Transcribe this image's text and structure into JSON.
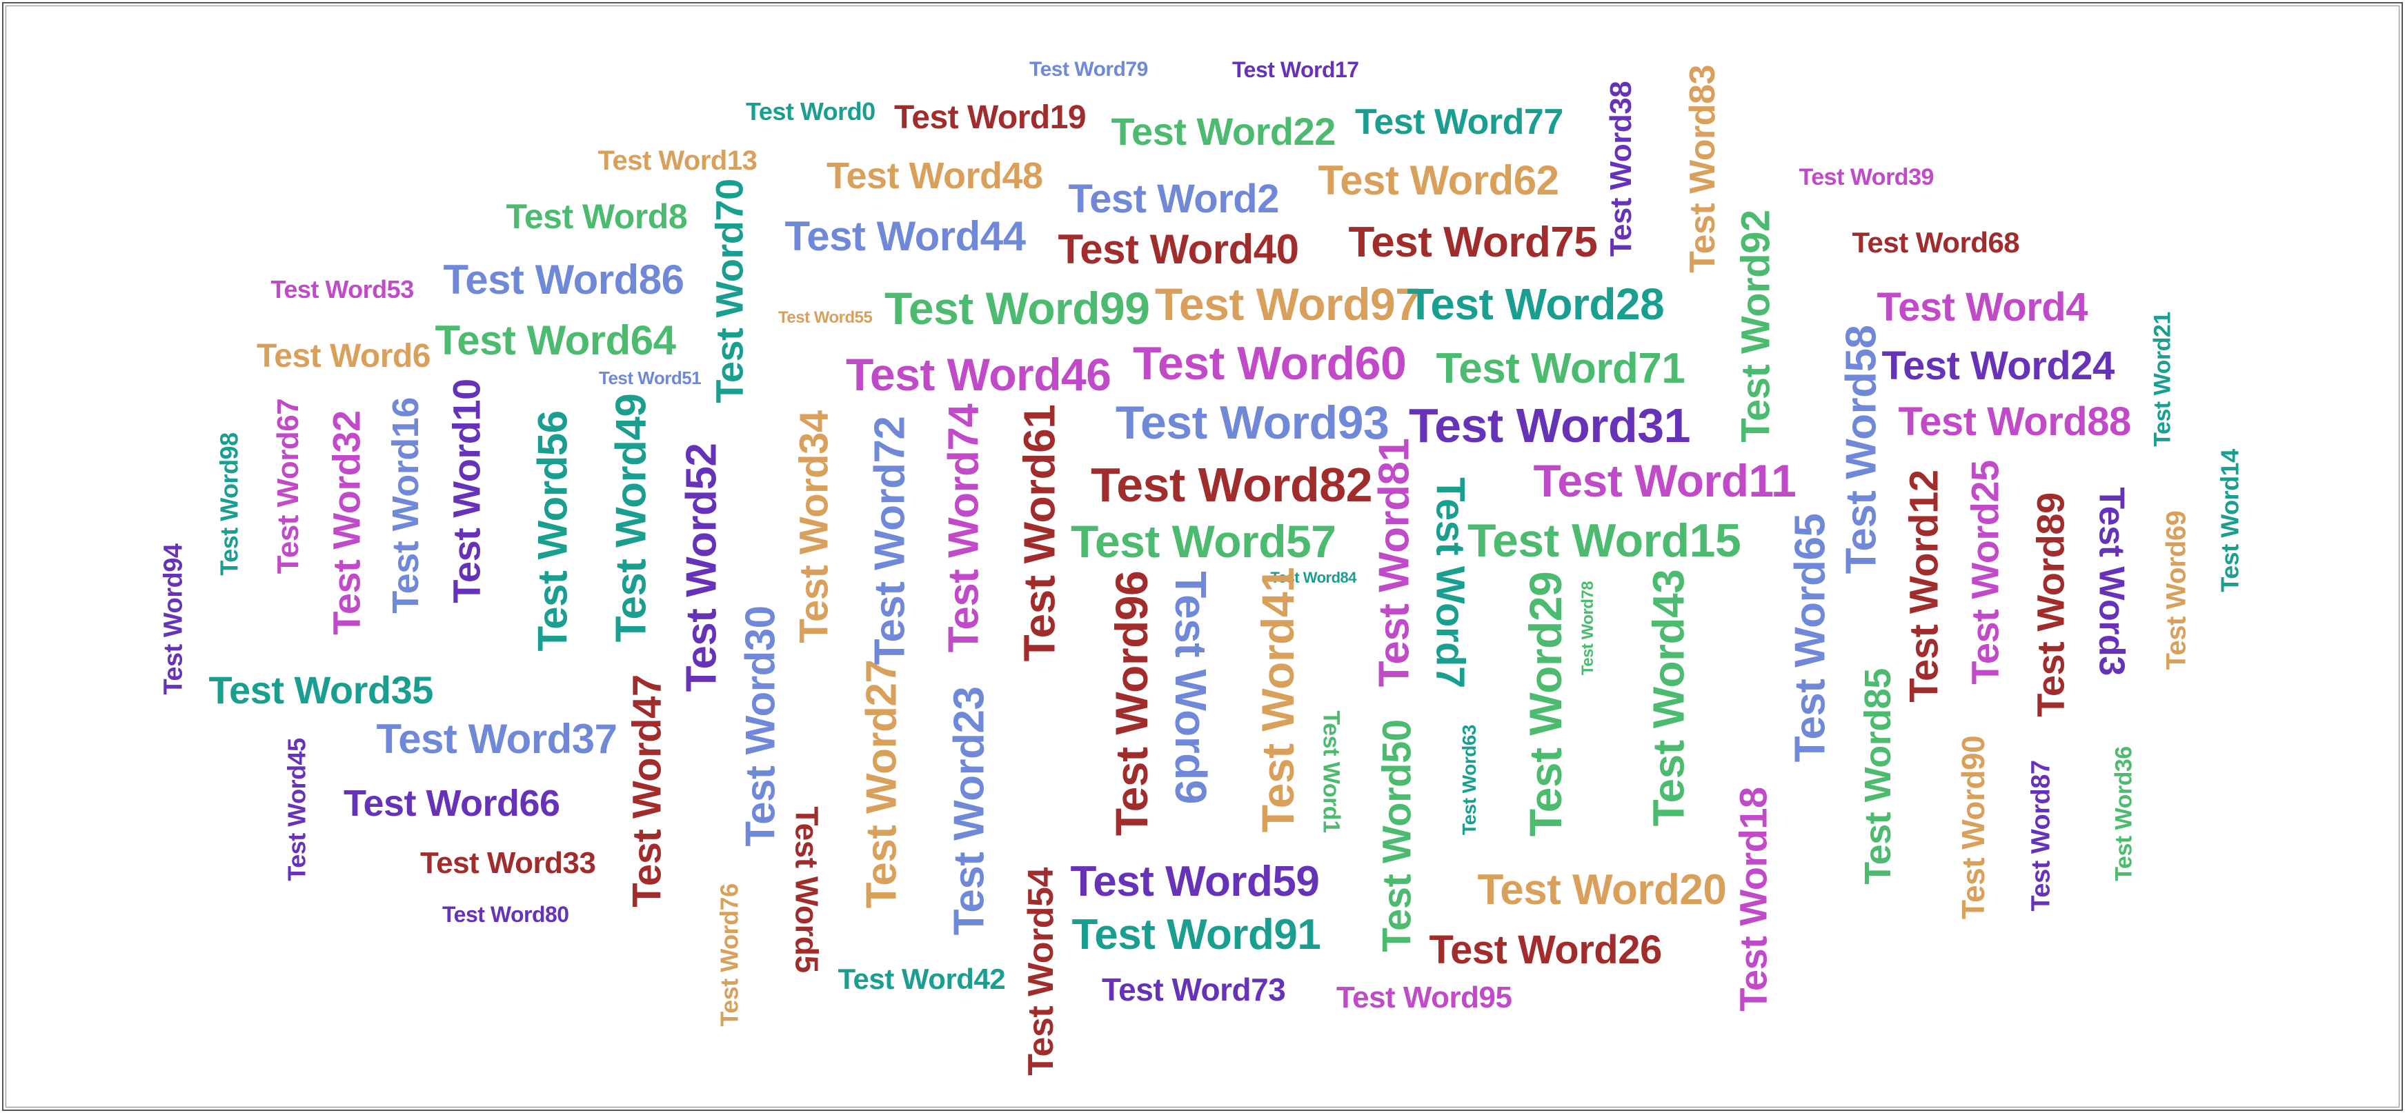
{
  "palette": {
    "teal": "#1a9e8f",
    "red": "#a02c2c",
    "green": "#4cbb6f",
    "blue": "#6f88d8",
    "purple": "#6633b8",
    "orange": "#d9a05b",
    "magenta": "#c04ac8"
  },
  "words": [
    {
      "text": "Test Word79",
      "color": "blue"
    },
    {
      "text": "Test Word17",
      "color": "purple"
    },
    {
      "text": "Test Word0",
      "color": "teal"
    },
    {
      "text": "Test Word19",
      "color": "red"
    },
    {
      "text": "Test Word22",
      "color": "green"
    },
    {
      "text": "Test Word77",
      "color": "teal"
    },
    {
      "text": "Test Word38",
      "color": "purple"
    },
    {
      "text": "Test Word83",
      "color": "orange"
    },
    {
      "text": "Test Word13",
      "color": "orange"
    },
    {
      "text": "Test Word48",
      "color": "orange"
    },
    {
      "text": "Test Word62",
      "color": "orange"
    },
    {
      "text": "Test Word2",
      "color": "blue"
    },
    {
      "text": "Test Word39",
      "color": "magenta"
    },
    {
      "text": "Test Word8",
      "color": "green"
    },
    {
      "text": "Test Word70",
      "color": "teal"
    },
    {
      "text": "Test Word44",
      "color": "blue"
    },
    {
      "text": "Test Word40",
      "color": "red"
    },
    {
      "text": "Test Word75",
      "color": "red"
    },
    {
      "text": "Test Word92",
      "color": "green"
    },
    {
      "text": "Test Word68",
      "color": "red"
    },
    {
      "text": "Test Word53",
      "color": "magenta"
    },
    {
      "text": "Test Word86",
      "color": "blue"
    },
    {
      "text": "Test Word99",
      "color": "green"
    },
    {
      "text": "Test Word97",
      "color": "orange"
    },
    {
      "text": "Test Word28",
      "color": "teal"
    },
    {
      "text": "Test Word4",
      "color": "magenta"
    },
    {
      "text": "Test Word55",
      "color": "orange"
    },
    {
      "text": "Test Word64",
      "color": "green"
    },
    {
      "text": "Test Word6",
      "color": "orange"
    },
    {
      "text": "Test Word51",
      "color": "blue"
    },
    {
      "text": "Test Word46",
      "color": "magenta"
    },
    {
      "text": "Test Word60",
      "color": "magenta"
    },
    {
      "text": "Test Word71",
      "color": "green"
    },
    {
      "text": "Test Word58",
      "color": "blue"
    },
    {
      "text": "Test Word24",
      "color": "purple"
    },
    {
      "text": "Test Word21",
      "color": "teal"
    },
    {
      "text": "Test Word93",
      "color": "blue"
    },
    {
      "text": "Test Word31",
      "color": "purple"
    },
    {
      "text": "Test Word88",
      "color": "magenta"
    },
    {
      "text": "Test Word98",
      "color": "teal"
    },
    {
      "text": "Test Word67",
      "color": "magenta"
    },
    {
      "text": "Test Word32",
      "color": "magenta"
    },
    {
      "text": "Test Word16",
      "color": "blue"
    },
    {
      "text": "Test Word10",
      "color": "purple"
    },
    {
      "text": "Test Word56",
      "color": "teal"
    },
    {
      "text": "Test Word49",
      "color": "teal"
    },
    {
      "text": "Test Word52",
      "color": "purple"
    },
    {
      "text": "Test Word34",
      "color": "orange"
    },
    {
      "text": "Test Word72",
      "color": "blue"
    },
    {
      "text": "Test Word74",
      "color": "magenta"
    },
    {
      "text": "Test Word61",
      "color": "red"
    },
    {
      "text": "Test Word82",
      "color": "red"
    },
    {
      "text": "Test Word81",
      "color": "magenta"
    },
    {
      "text": "Test Word7",
      "color": "teal"
    },
    {
      "text": "Test Word11",
      "color": "magenta"
    },
    {
      "text": "Test Word14",
      "color": "teal"
    },
    {
      "text": "Test Word94",
      "color": "purple"
    },
    {
      "text": "Test Word57",
      "color": "green"
    },
    {
      "text": "Test Word15",
      "color": "green"
    },
    {
      "text": "Test Word65",
      "color": "blue"
    },
    {
      "text": "Test Word12",
      "color": "red"
    },
    {
      "text": "Test Word25",
      "color": "magenta"
    },
    {
      "text": "Test Word89",
      "color": "red"
    },
    {
      "text": "Test Word3",
      "color": "purple"
    },
    {
      "text": "Test Word69",
      "color": "orange"
    },
    {
      "text": "Test Word84",
      "color": "teal"
    },
    {
      "text": "Test Word78",
      "color": "green"
    },
    {
      "text": "Test Word35",
      "color": "teal"
    },
    {
      "text": "Test Word30",
      "color": "blue"
    },
    {
      "text": "Test Word96",
      "color": "red"
    },
    {
      "text": "Test Word9",
      "color": "blue"
    },
    {
      "text": "Test Word41",
      "color": "orange"
    },
    {
      "text": "Test Word29",
      "color": "green"
    },
    {
      "text": "Test Word43",
      "color": "green"
    },
    {
      "text": "Test Word37",
      "color": "blue"
    },
    {
      "text": "Test Word47",
      "color": "red"
    },
    {
      "text": "Test Word27",
      "color": "orange"
    },
    {
      "text": "Test Word23",
      "color": "blue"
    },
    {
      "text": "Test Word1",
      "color": "green"
    },
    {
      "text": "Test Word50",
      "color": "green"
    },
    {
      "text": "Test Word63",
      "color": "teal"
    },
    {
      "text": "Test Word45",
      "color": "purple"
    },
    {
      "text": "Test Word66",
      "color": "purple"
    },
    {
      "text": "Test Word85",
      "color": "green"
    },
    {
      "text": "Test Word90",
      "color": "orange"
    },
    {
      "text": "Test Word87",
      "color": "purple"
    },
    {
      "text": "Test Word36",
      "color": "green"
    },
    {
      "text": "Test Word18",
      "color": "magenta"
    },
    {
      "text": "Test Word33",
      "color": "red"
    },
    {
      "text": "Test Word5",
      "color": "red"
    },
    {
      "text": "Test Word54",
      "color": "red"
    },
    {
      "text": "Test Word59",
      "color": "purple"
    },
    {
      "text": "Test Word20",
      "color": "orange"
    },
    {
      "text": "Test Word80",
      "color": "purple"
    },
    {
      "text": "Test Word76",
      "color": "orange"
    },
    {
      "text": "Test Word91",
      "color": "teal"
    },
    {
      "text": "Test Word26",
      "color": "red"
    },
    {
      "text": "Test Word42",
      "color": "teal"
    },
    {
      "text": "Test Word73",
      "color": "purple"
    },
    {
      "text": "Test Word95",
      "color": "magenta"
    }
  ]
}
